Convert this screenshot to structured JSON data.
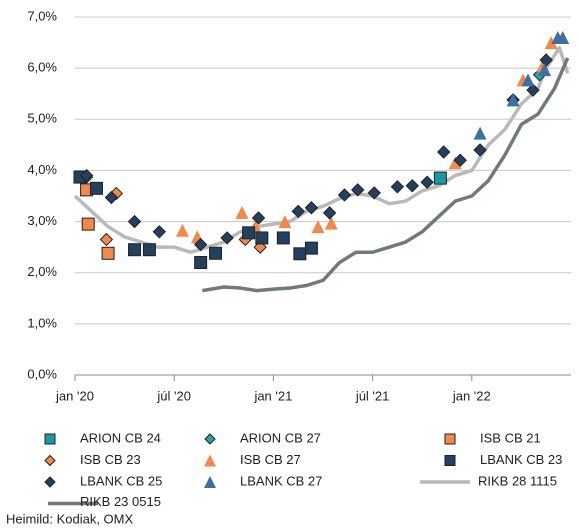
{
  "chart_data": {
    "type": "scatter",
    "xlim": [
      0,
      30
    ],
    "ylim": [
      0,
      7
    ],
    "xticks": [
      {
        "value": 0,
        "label": "jan '20"
      },
      {
        "value": 6,
        "label": "júl '20"
      },
      {
        "value": 12,
        "label": "jan '21"
      },
      {
        "value": 18,
        "label": "júl '21"
      },
      {
        "value": 24,
        "label": "jan '22"
      }
    ],
    "yticks": [
      {
        "value": 0,
        "label": "0,0%"
      },
      {
        "value": 1,
        "label": "1,0%"
      },
      {
        "value": 2,
        "label": "2,0%"
      },
      {
        "value": 3,
        "label": "3,0%"
      },
      {
        "value": 4,
        "label": "4,0%"
      },
      {
        "value": 5,
        "label": "5,0%"
      },
      {
        "value": 6,
        "label": "6,0%"
      },
      {
        "value": 7,
        "label": "7,0%"
      }
    ],
    "grid": true,
    "source": "Heimild: Kodiak, OMX",
    "series": [
      {
        "name": "ARION CB 24",
        "marker": "square",
        "color": "#1a9a9e",
        "x": [
          22.1
        ],
        "values": [
          3.85
        ]
      },
      {
        "name": "ARION CB 27",
        "marker": "diamond",
        "color": "#2ba3ac",
        "x": [
          28.1
        ],
        "values": [
          5.87
        ]
      },
      {
        "name": "ISB CB 21",
        "marker": "square",
        "color": "#ef8a4c",
        "x": [
          0.7,
          0.8,
          2.0
        ],
        "values": [
          3.62,
          2.95,
          2.38
        ]
      },
      {
        "name": "ISB CB 23",
        "marker": "diamond",
        "color": "#ef8a4c",
        "x": [
          0.7,
          1.9,
          2.5,
          10.3,
          11.2
        ],
        "values": [
          3.87,
          2.65,
          3.55,
          2.65,
          2.5
        ]
      },
      {
        "name": "ISB CB 27",
        "marker": "triangle",
        "color": "#ef8a4c",
        "x": [
          6.5,
          7.4,
          10.1,
          10.9,
          12.7,
          14.7,
          15.5,
          23.0,
          27.1,
          28.3,
          28.8
        ],
        "values": [
          2.83,
          2.7,
          3.18,
          2.9,
          3.0,
          2.9,
          2.97,
          4.15,
          5.77,
          6.05,
          6.5
        ]
      },
      {
        "name": "LBANK CB 23",
        "marker": "square",
        "color": "#23405f",
        "x": [
          0.3,
          1.3,
          3.6,
          4.5,
          7.6,
          8.5,
          10.5,
          11.3,
          12.6,
          13.6,
          14.3
        ],
        "values": [
          3.87,
          3.65,
          2.45,
          2.45,
          2.2,
          2.38,
          2.78,
          2.68,
          2.68,
          2.37,
          2.48
        ]
      },
      {
        "name": "LBANK CB 25",
        "marker": "diamond",
        "color": "#23405f",
        "x": [
          0.7,
          2.2,
          3.6,
          5.1,
          7.6,
          9.2,
          11.1,
          13.5,
          14.3,
          15.4,
          16.3,
          17.1,
          18.1,
          19.5,
          20.4,
          21.3,
          22.3,
          23.3,
          24.5,
          26.5,
          27.7,
          28.5
        ],
        "values": [
          3.9,
          3.47,
          3.0,
          2.8,
          2.55,
          2.68,
          3.07,
          3.2,
          3.27,
          3.17,
          3.52,
          3.62,
          3.56,
          3.68,
          3.7,
          3.77,
          4.36,
          4.2,
          4.4,
          5.38,
          5.57,
          6.16
        ]
      },
      {
        "name": "LBANK CB 27",
        "marker": "triangle",
        "color": "#3d6fa3",
        "x": [
          24.5,
          26.5,
          27.4,
          28.4,
          29.2,
          29.5
        ],
        "values": [
          4.73,
          5.38,
          5.77,
          5.97,
          6.6,
          6.6
        ]
      },
      {
        "name": "RIKB 28 1115",
        "marker": "line",
        "color": "#b9b9b9",
        "x": [
          0,
          1,
          2,
          3,
          4,
          5,
          6,
          7,
          8,
          9,
          10,
          11,
          12,
          13,
          14,
          15,
          16,
          17,
          18,
          19,
          20,
          21,
          22,
          23,
          24,
          25,
          26,
          27,
          28,
          28.5,
          29.3,
          29.8
        ],
        "values": [
          3.5,
          3.2,
          2.9,
          2.7,
          2.6,
          2.5,
          2.5,
          2.4,
          2.5,
          2.6,
          2.8,
          2.9,
          2.95,
          3.0,
          3.2,
          3.3,
          3.45,
          3.55,
          3.5,
          3.35,
          3.4,
          3.6,
          3.7,
          3.9,
          4.0,
          4.5,
          4.8,
          5.3,
          5.6,
          6.0,
          6.4,
          5.9
        ]
      },
      {
        "name": "RIKB 23 0515",
        "marker": "line",
        "color": "#6f7a7b",
        "x": [
          7.7,
          9,
          10,
          11,
          12,
          13,
          14,
          15,
          16,
          17,
          18,
          19,
          20,
          21,
          22,
          23,
          24,
          25,
          26,
          27,
          28,
          29,
          29.8
        ],
        "values": [
          1.65,
          1.72,
          1.7,
          1.65,
          1.68,
          1.7,
          1.75,
          1.85,
          2.2,
          2.4,
          2.4,
          2.5,
          2.6,
          2.8,
          3.1,
          3.4,
          3.5,
          3.8,
          4.3,
          4.9,
          5.1,
          5.6,
          6.2
        ]
      }
    ]
  }
}
